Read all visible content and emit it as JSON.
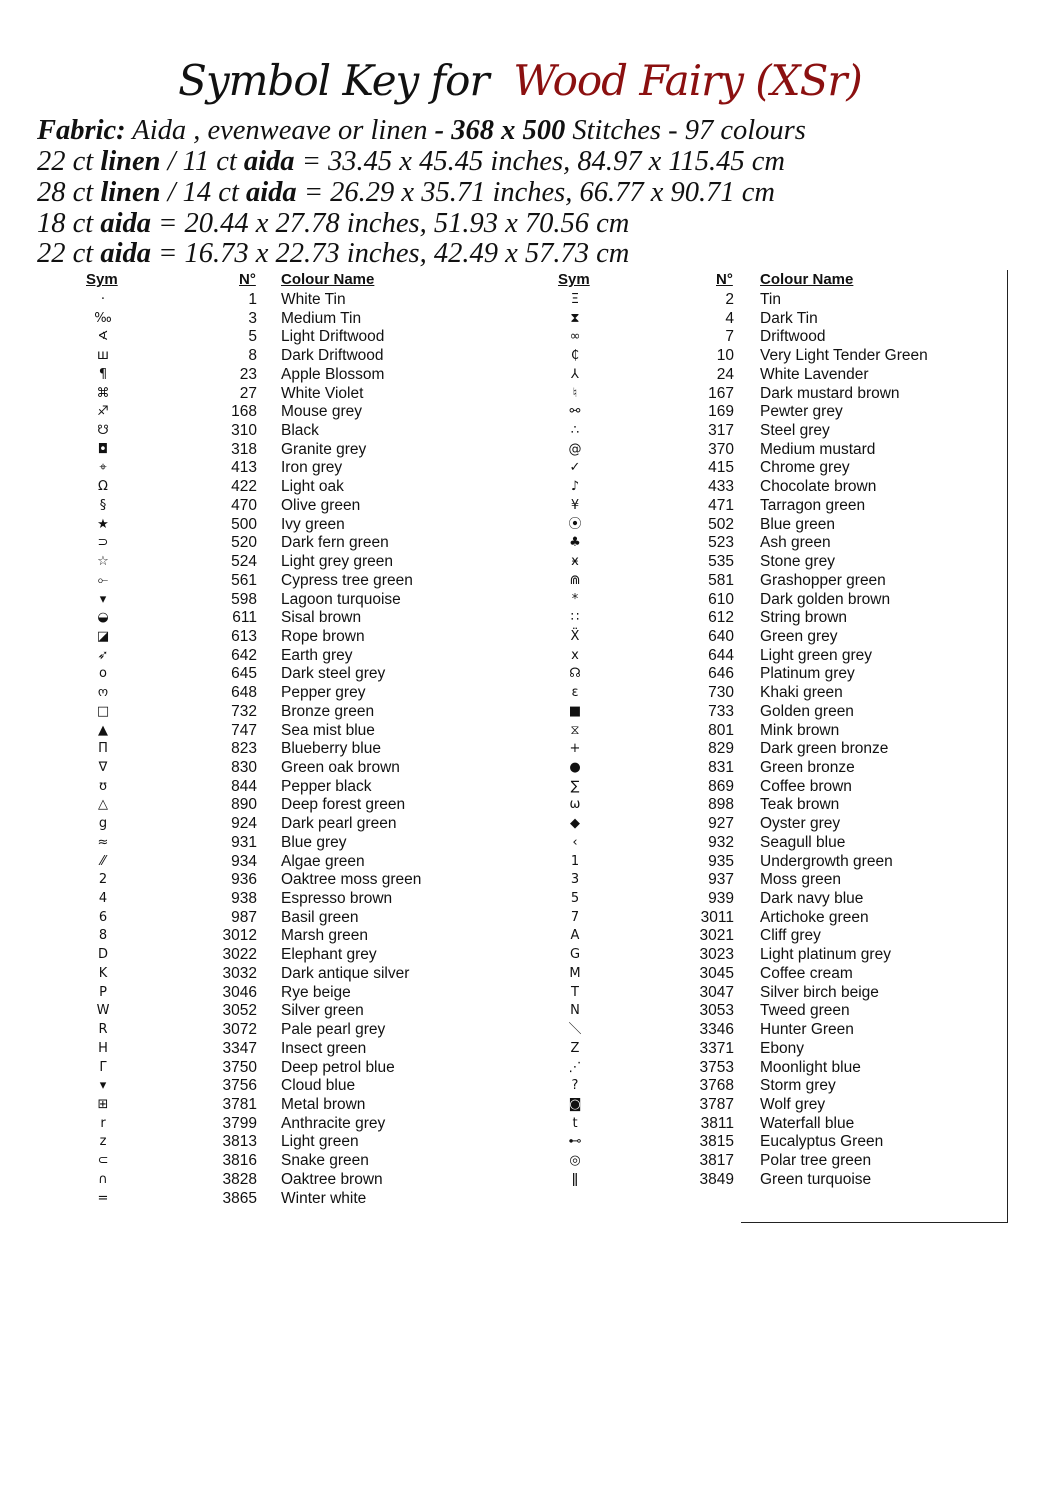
{
  "title": {
    "prefix": "Symbol Key for",
    "pattern": "Wood Fairy (XSr)",
    "accent_color": "#8b1010"
  },
  "info": {
    "line1": {
      "fabric_label": "Fabric:",
      "fabric": " Aida , evenweave or  linen ",
      "dash": "- ",
      "stitches": "368 x 500",
      "rest": " Stitches - 97 colours"
    },
    "line2": {
      "a": "22 ct ",
      "b": "linen",
      "c": " / 11 ct ",
      "d": "aida",
      "e": " = 33.45 x 45.45 inches, 84.97 x 115.45 cm"
    },
    "line3": {
      "a": "28 ct ",
      "b": "linen",
      "c": " / 14 ct ",
      "d": "aida",
      "e": " = 26.29 x 35.71 inches, 66.77 x 90.71 cm"
    },
    "line4": {
      "a": "18 ct ",
      "d": "aida",
      "e": "  = 20.44 x 27.78 inches, 51.93 x 70.56 cm"
    },
    "line5": {
      "a": "22 ct ",
      "d": "aida",
      "e": " = 16.73 x 22.73 inches, 42.49 x 57.73 cm"
    }
  },
  "headers": {
    "sym": "Sym",
    "no": "N°",
    "name": "Colour Name"
  },
  "left": [
    [
      "·",
      "1",
      "White Tin"
    ],
    [
      "‰",
      "3",
      "Medium Tin"
    ],
    [
      "∢",
      "5",
      "Light Driftwood"
    ],
    [
      "ш",
      "8",
      "Dark Driftwood"
    ],
    [
      "¶",
      "23",
      "Apple Blossom"
    ],
    [
      "⌘",
      "27",
      "White Violet"
    ],
    [
      "♐",
      "168",
      "Mouse grey"
    ],
    [
      "☋",
      "310",
      "Black"
    ],
    [
      "◘",
      "318",
      "Granite grey"
    ],
    [
      "⌖",
      "413",
      "Iron grey"
    ],
    [
      "Ω",
      "422",
      "Light oak"
    ],
    [
      "§",
      "470",
      "Olive green"
    ],
    [
      "★",
      "500",
      "Ivy green"
    ],
    [
      "⊃",
      "520",
      "Dark fern green"
    ],
    [
      "☆",
      "524",
      "Light grey green"
    ],
    [
      "⟜",
      "561",
      "Cypress tree green"
    ],
    [
      "▾",
      "598",
      "Lagoon turquoise"
    ],
    [
      "◒",
      "611",
      "Sisal brown"
    ],
    [
      "◪",
      "613",
      "Rope brown"
    ],
    [
      "➶",
      "642",
      "Earth grey"
    ],
    [
      "o",
      "645",
      "Dark steel grey"
    ],
    [
      "ო",
      "648",
      "Pepper grey"
    ],
    [
      "□",
      "732",
      "Bronze green"
    ],
    [
      "▲",
      "747",
      "Sea mist blue"
    ],
    [
      "Π",
      "823",
      "Blueberry blue"
    ],
    [
      "∇",
      "830",
      "Green oak brown"
    ],
    [
      "ʊ",
      "844",
      "Pepper black"
    ],
    [
      "△",
      "890",
      "Deep forest green"
    ],
    [
      "g",
      "924",
      "Dark pearl green"
    ],
    [
      "≈",
      "931",
      "Blue grey"
    ],
    [
      "⁄⁄",
      "934",
      "Algae green"
    ],
    [
      "2",
      "936",
      "Oaktree moss green"
    ],
    [
      "4",
      "938",
      "Espresso brown"
    ],
    [
      "6",
      "987",
      "Basil green"
    ],
    [
      "8",
      "3012",
      "Marsh green"
    ],
    [
      "D",
      "3022",
      "Elephant grey"
    ],
    [
      "K",
      "3032",
      "Dark antique silver"
    ],
    [
      "P",
      "3046",
      "Rye beige"
    ],
    [
      "W",
      "3052",
      "Silver green"
    ],
    [
      "R",
      "3072",
      "Pale pearl grey"
    ],
    [
      "H",
      "3347",
      "Insect green"
    ],
    [
      "Γ",
      "3750",
      "Deep petrol blue"
    ],
    [
      "▾",
      "3756",
      "Cloud blue"
    ],
    [
      "⊞",
      "3781",
      "Metal brown"
    ],
    [
      "r",
      "3799",
      "Anthracite grey"
    ],
    [
      "z",
      "3813",
      "Light green"
    ],
    [
      "⊂",
      "3816",
      "Snake green"
    ],
    [
      "∩",
      "3828",
      "Oaktree brown"
    ],
    [
      "=",
      "3865",
      "Winter white"
    ]
  ],
  "right": [
    [
      "Ξ",
      "2",
      "Tin"
    ],
    [
      "⧗",
      "4",
      "Dark Tin"
    ],
    [
      "∞",
      "7",
      "Driftwood"
    ],
    [
      "₵",
      "10",
      "Very Light Tender Green"
    ],
    [
      "⅄",
      "24",
      "White Lavender"
    ],
    [
      "♮",
      "167",
      "Dark mustard brown"
    ],
    [
      "⚯",
      "169",
      "Pewter grey"
    ],
    [
      "∴",
      "317",
      "Steel grey"
    ],
    [
      "@",
      "370",
      "Medium mustard"
    ],
    [
      "✓",
      "415",
      "Chrome grey"
    ],
    [
      "♪",
      "433",
      "Chocolate brown"
    ],
    [
      "¥",
      "471",
      "Tarragon green"
    ],
    [
      "⦿",
      "502",
      "Blue green"
    ],
    [
      "♣",
      "523",
      "Ash green"
    ],
    [
      "ӿ",
      "535",
      "Stone grey"
    ],
    [
      "⋒",
      "581",
      "Grashopper green"
    ],
    [
      "*",
      "610",
      "Dark golden brown"
    ],
    [
      "∷",
      "612",
      "String brown"
    ],
    [
      "Ẍ",
      "640",
      "Green grey"
    ],
    [
      "x",
      "644",
      "Light green grey"
    ],
    [
      "☊",
      "646",
      "Platinum grey"
    ],
    [
      "ε",
      "730",
      "Khaki green"
    ],
    [
      "■",
      "733",
      "Golden green"
    ],
    [
      "⧖",
      "801",
      "Mink brown"
    ],
    [
      "+",
      "829",
      "Dark green bronze"
    ],
    [
      "●",
      "831",
      "Green bronze"
    ],
    [
      "∑",
      "869",
      "Coffee brown"
    ],
    [
      "ω",
      "898",
      "Teak brown"
    ],
    [
      "◆",
      "927",
      "Oyster grey"
    ],
    [
      "‹",
      "932",
      "Seagull blue"
    ],
    [
      "1",
      "935",
      "Undergrowth green"
    ],
    [
      "3",
      "937",
      "Moss green"
    ],
    [
      "5",
      "939",
      "Dark navy blue"
    ],
    [
      "7",
      "3011",
      "Artichoke green"
    ],
    [
      "A",
      "3021",
      "Cliff grey"
    ],
    [
      "G",
      "3023",
      "Light platinum grey"
    ],
    [
      "M",
      "3045",
      "Coffee cream"
    ],
    [
      "T",
      "3047",
      "Silver birch beige"
    ],
    [
      "N",
      "3053",
      "Tweed green"
    ],
    [
      "＼",
      "3346",
      "Hunter Green"
    ],
    [
      "Z",
      "3371",
      "Ebony"
    ],
    [
      "⋰",
      "3753",
      "Moonlight blue"
    ],
    [
      "?",
      "3768",
      "Storm grey"
    ],
    [
      "◙",
      "3787",
      "Wolf grey"
    ],
    [
      "t",
      "3811",
      "Waterfall blue"
    ],
    [
      "⊷",
      "3815",
      "Eucalyptus Green"
    ],
    [
      "◎",
      "3817",
      "Polar tree green"
    ],
    [
      "ǁ",
      "3849",
      "Green turquoise"
    ]
  ]
}
